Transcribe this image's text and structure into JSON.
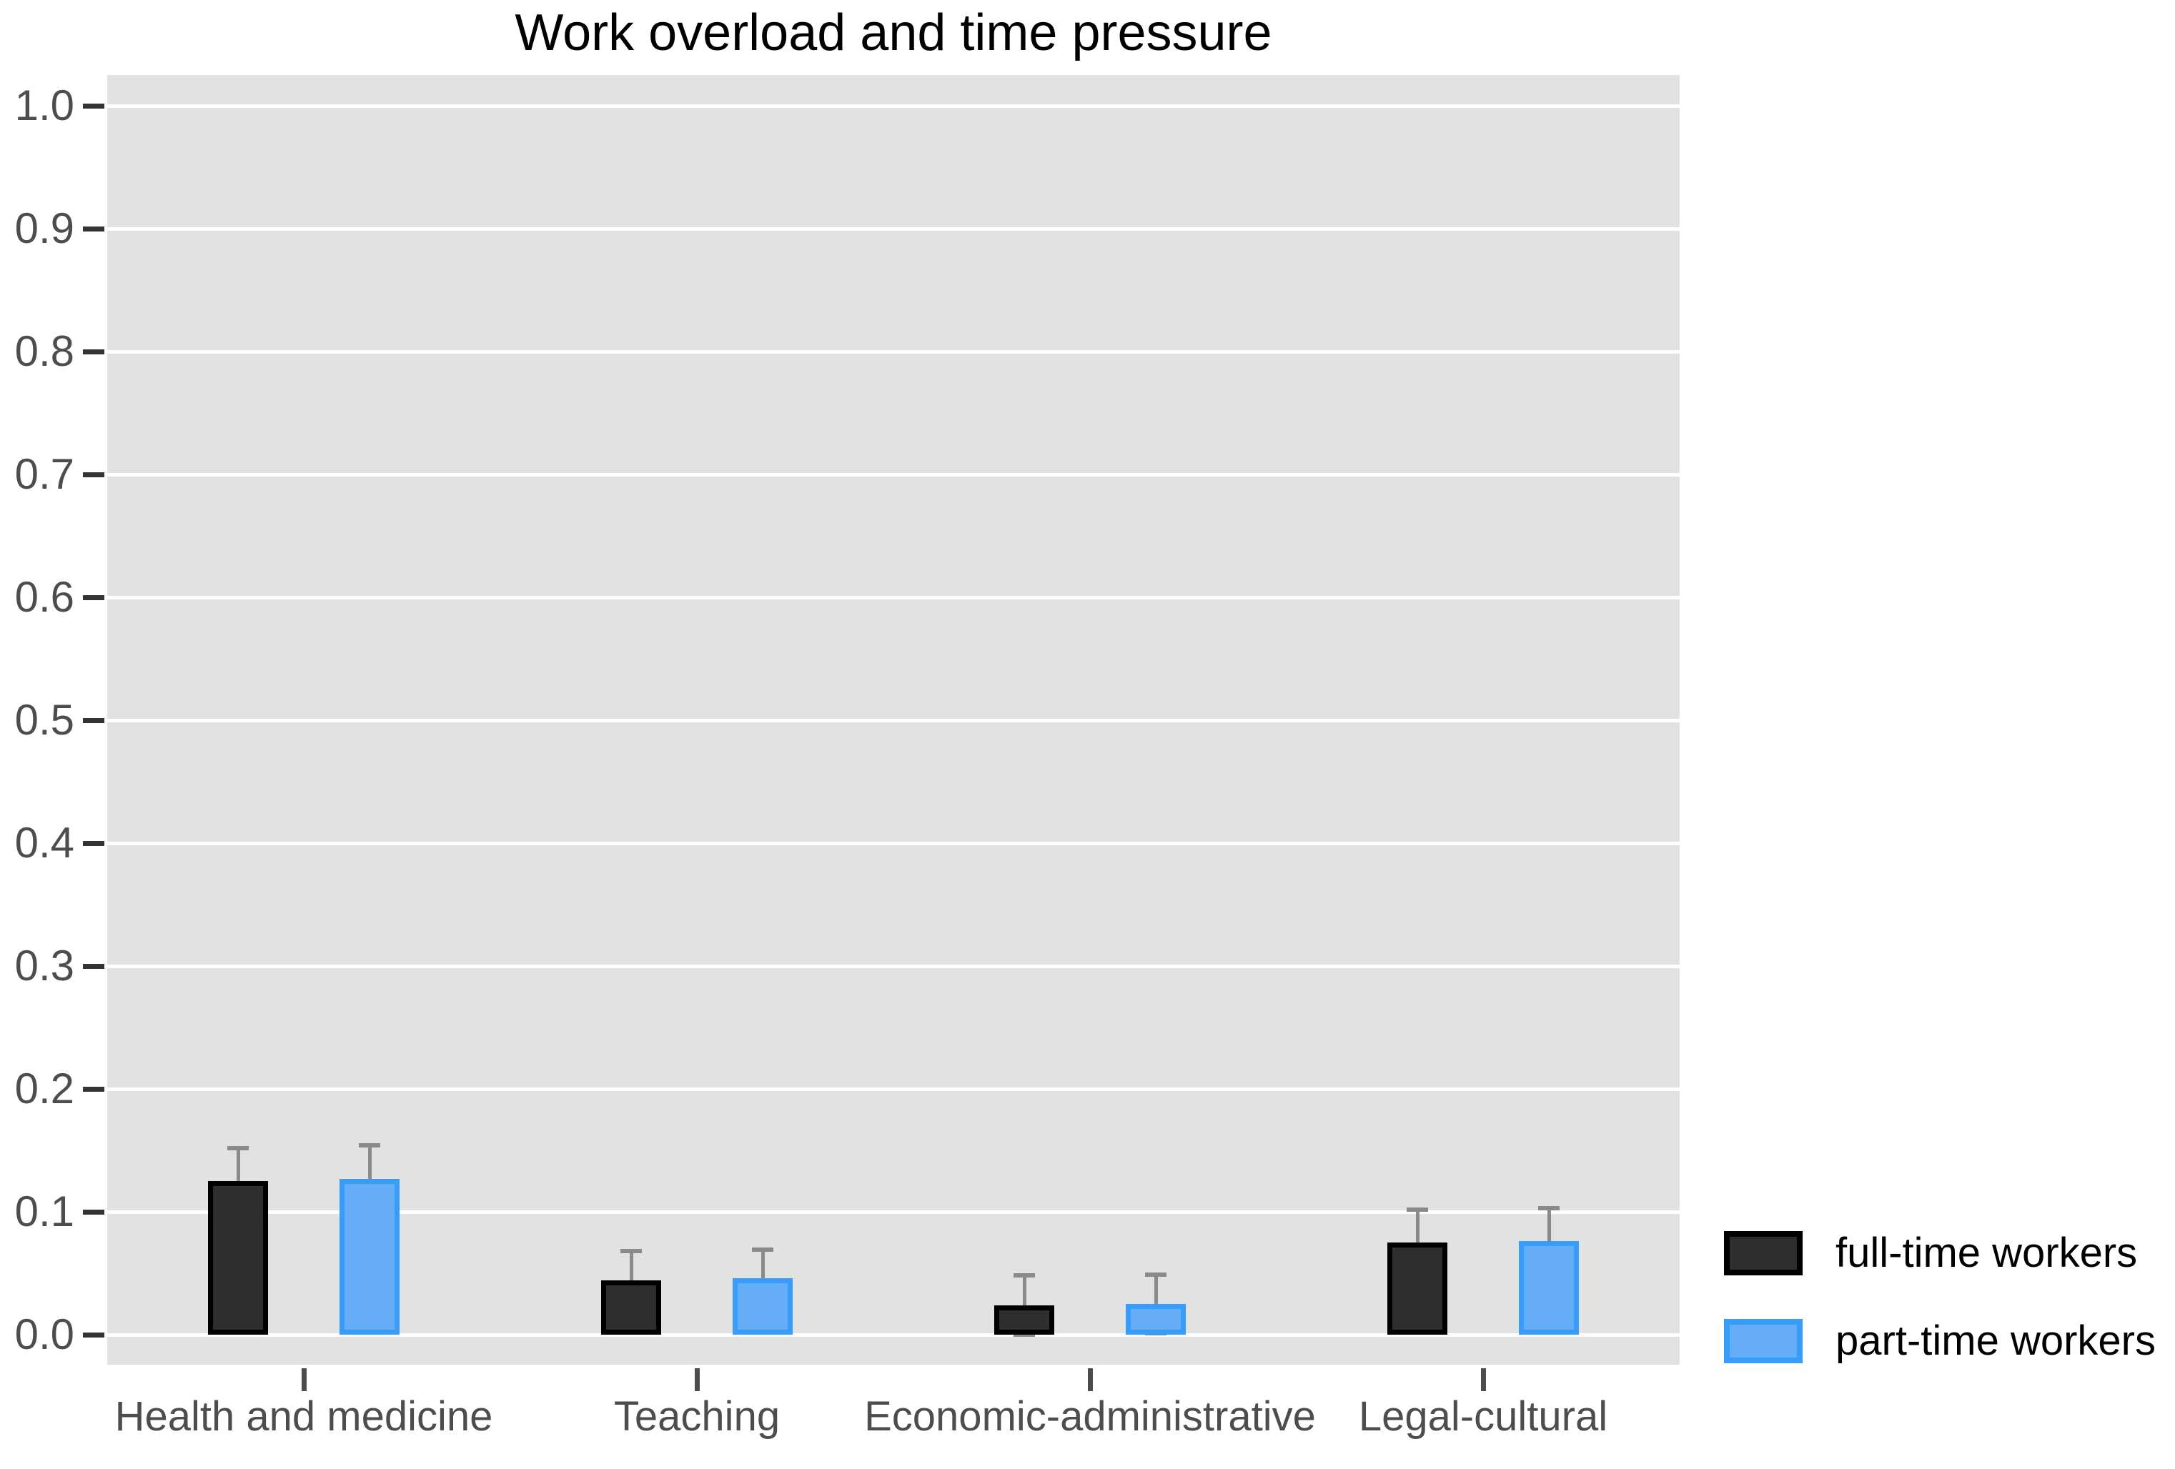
{
  "chart_data": {
    "type": "bar",
    "title": "Work overload and time pressure",
    "categories": [
      "Health and medicine",
      "Teaching",
      "Economic-administrative",
      "Legal-cultural"
    ],
    "series": [
      {
        "name": "full-time workers",
        "values": [
          0.125,
          0.044,
          0.024,
          0.075
        ],
        "error_upper": [
          0.152,
          0.068,
          0.048,
          0.102
        ],
        "error_lower": [
          0.098,
          0.02,
          0.0,
          0.048
        ],
        "fill_color": "#2e2e2e",
        "border_color": "#000000"
      },
      {
        "name": "part-time workers",
        "values": [
          0.127,
          0.046,
          0.025,
          0.076
        ],
        "error_upper": [
          0.154,
          0.069,
          0.049,
          0.103
        ],
        "error_lower": [
          0.1,
          0.023,
          0.001,
          0.049
        ],
        "fill_color": "#66adf8",
        "border_color": "#389cfa"
      }
    ],
    "xlabel": "",
    "ylabel": "",
    "ylim": [
      0.0,
      1.0
    ],
    "yticks": [
      0.0,
      0.1,
      0.2,
      0.3,
      0.4,
      0.5,
      0.6,
      0.7,
      0.8,
      0.9,
      1.0
    ],
    "ytick_labels": [
      "0.0",
      "0.1",
      "0.2",
      "0.3",
      "0.4",
      "0.5",
      "0.6",
      "0.7",
      "0.8",
      "0.9",
      "1.0"
    ],
    "grid": "horizontal major gridlines only, white on grey panel",
    "legend_position": "right-bottom",
    "panel_background": "#e2e2e2",
    "gridline_color": "#ffffff",
    "error_bar_color": "#8a8a8a",
    "axis_text_color": "#4d4d4d",
    "title_color": "#000000"
  },
  "legend": {
    "items": [
      {
        "label": "full-time workers"
      },
      {
        "label": "part-time workers"
      }
    ]
  }
}
